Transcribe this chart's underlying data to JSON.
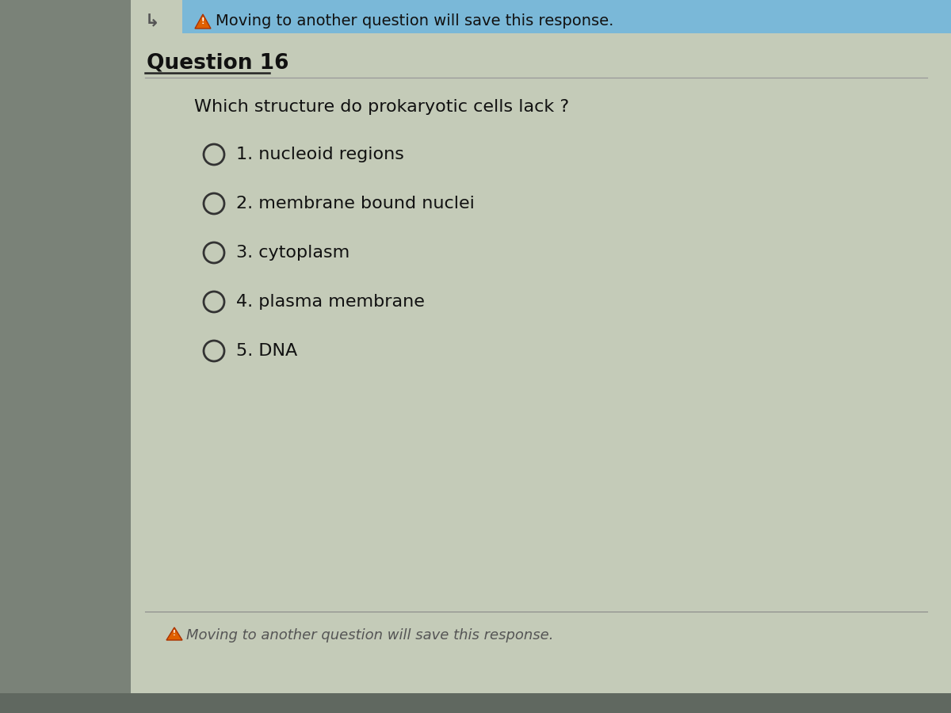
{
  "bg_color": "#a8b0a0",
  "panel_color": "#c4cbb8",
  "top_bar_color": "#7ab8d8",
  "header_text": "Moving to another question will save this response.",
  "question_label": "Question 16",
  "question_text": "Which structure do prokaryotic cells lack ?",
  "options": [
    "1. nucleoid regions",
    "2. membrane bound nuclei",
    "3. cytoplasm",
    "4. plasma membrane",
    "5. DNA"
  ],
  "footer_text": "Moving to another question will save this response.",
  "text_color": "#111111",
  "radio_color": "#333333",
  "line_color": "#999999",
  "arrow_color": "#555555",
  "warning_color": "#dd5500",
  "footer_text_color": "#555555"
}
